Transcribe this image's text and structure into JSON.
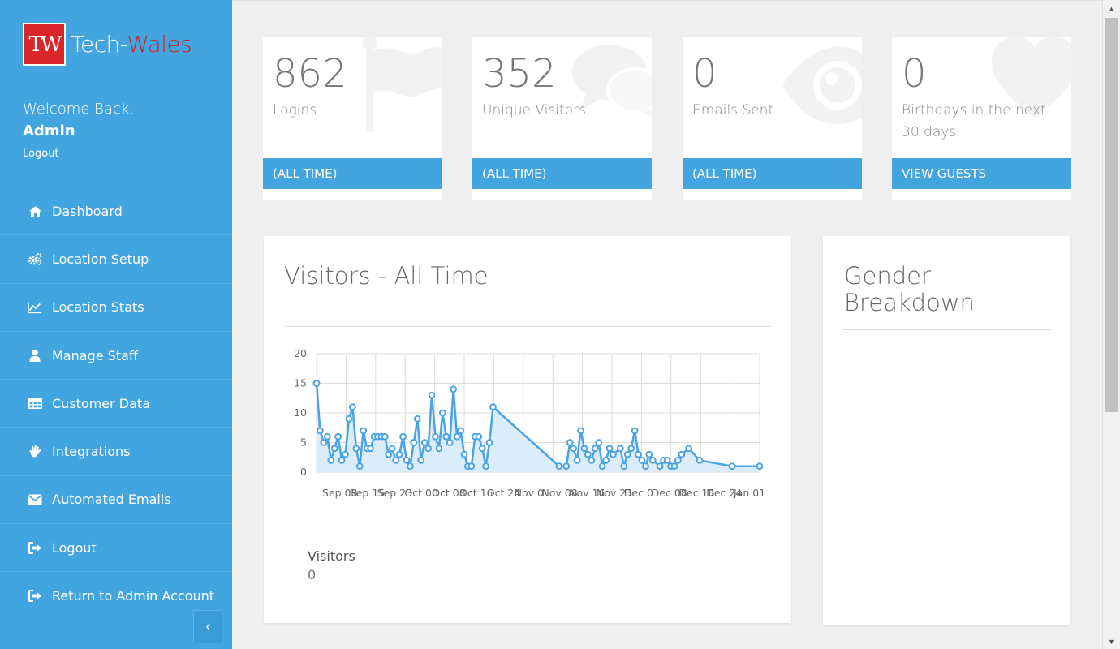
{
  "brand": {
    "mark": "TW",
    "name_part1": "Tech-",
    "name_part2": "Wales"
  },
  "user": {
    "welcome": "Welcome Back,",
    "name": "Admin",
    "logout": "Logout"
  },
  "nav": [
    {
      "label": "Dashboard",
      "icon": "home-icon"
    },
    {
      "label": "Location Setup",
      "icon": "cogs-icon"
    },
    {
      "label": "Location Stats",
      "icon": "line-chart-icon"
    },
    {
      "label": "Manage Staff",
      "icon": "user-icon"
    },
    {
      "label": "Customer Data",
      "icon": "table-icon"
    },
    {
      "label": "Integrations",
      "icon": "hand-icon"
    },
    {
      "label": "Automated Emails",
      "icon": "envelope-icon"
    },
    {
      "label": "Logout",
      "icon": "sign-out-icon"
    },
    {
      "label": "Return to Admin Account",
      "icon": "sign-out-icon"
    }
  ],
  "collapse_glyph": "‹",
  "stats": [
    {
      "value": "862",
      "label": "Logins",
      "footer": "(ALL TIME)",
      "icon": "flag-icon"
    },
    {
      "value": "352",
      "label": "Unique Visitors",
      "footer": "(ALL TIME)",
      "icon": "comments-icon"
    },
    {
      "value": "0",
      "label": "Emails Sent",
      "footer": "(ALL TIME)",
      "icon": "eye-icon"
    },
    {
      "value": "0",
      "label": "Birthdays in the next 30 days",
      "footer": "VIEW GUESTS",
      "icon": "heart-icon"
    }
  ],
  "visitors_panel": {
    "title": "Visitors - All Time",
    "legend_label": "Visitors",
    "legend_value": "0"
  },
  "gender_panel": {
    "title": "Gender Breakdown"
  },
  "chart_data": {
    "type": "area",
    "title": "Visitors - All Time",
    "ylim": [
      0,
      20
    ],
    "yticks": [
      0,
      5,
      10,
      15,
      20
    ],
    "xticks": [
      "Sep 08",
      "Sep 15",
      "Sep 23",
      "Oct 00",
      "Oct 08",
      "Oct 16",
      "Oct 24",
      "Nov 0",
      "Nov 08",
      "Nov 16",
      "Nov 23",
      "Dec 0",
      "Dec 08",
      "Dec 16",
      "Dec 24",
      "Jan 01"
    ],
    "grid": true,
    "colors": {
      "line": "#4aa3e4",
      "fill": "#d7eafa"
    },
    "series": [
      {
        "name": "Visitors",
        "points": [
          [
            0,
            15
          ],
          [
            0.3,
            7
          ],
          [
            0.6,
            5
          ],
          [
            0.9,
            6
          ],
          [
            1.2,
            2
          ],
          [
            1.5,
            4
          ],
          [
            1.8,
            6
          ],
          [
            2.1,
            2
          ],
          [
            2.4,
            3
          ],
          [
            2.7,
            9
          ],
          [
            3.0,
            11
          ],
          [
            3.3,
            4
          ],
          [
            3.6,
            1
          ],
          [
            3.9,
            7
          ],
          [
            4.2,
            4
          ],
          [
            4.5,
            4
          ],
          [
            4.8,
            6
          ],
          [
            5.1,
            6
          ],
          [
            5.4,
            6
          ],
          [
            5.7,
            6
          ],
          [
            6.0,
            3
          ],
          [
            6.3,
            4
          ],
          [
            6.6,
            2
          ],
          [
            6.9,
            3
          ],
          [
            7.2,
            6
          ],
          [
            7.5,
            2
          ],
          [
            7.8,
            1
          ],
          [
            8.1,
            5
          ],
          [
            8.4,
            9
          ],
          [
            8.7,
            2
          ],
          [
            9.0,
            5
          ],
          [
            9.3,
            4
          ],
          [
            9.6,
            13
          ],
          [
            9.9,
            6
          ],
          [
            10.2,
            4
          ],
          [
            10.5,
            10
          ],
          [
            10.8,
            6
          ],
          [
            11.1,
            5
          ],
          [
            11.4,
            14
          ],
          [
            11.7,
            6
          ],
          [
            12.0,
            7
          ],
          [
            12.3,
            3
          ],
          [
            12.6,
            1
          ],
          [
            12.9,
            1
          ],
          [
            13.2,
            6
          ],
          [
            13.5,
            6
          ],
          [
            13.8,
            4
          ],
          [
            14.1,
            1
          ],
          [
            14.4,
            5
          ],
          [
            14.7,
            11
          ],
          [
            20.2,
            1
          ],
          [
            20.8,
            1
          ],
          [
            21.1,
            5
          ],
          [
            21.4,
            4
          ],
          [
            21.7,
            2
          ],
          [
            22.0,
            7
          ],
          [
            22.3,
            4
          ],
          [
            22.6,
            3
          ],
          [
            22.9,
            2
          ],
          [
            23.2,
            4
          ],
          [
            23.5,
            5
          ],
          [
            23.8,
            1
          ],
          [
            24.1,
            2
          ],
          [
            24.4,
            4
          ],
          [
            24.7,
            3
          ],
          [
            25.3,
            4
          ],
          [
            25.6,
            1
          ],
          [
            25.9,
            3
          ],
          [
            26.2,
            4
          ],
          [
            26.5,
            7
          ],
          [
            26.8,
            3
          ],
          [
            27.1,
            2
          ],
          [
            27.4,
            1
          ],
          [
            27.7,
            3
          ],
          [
            28.0,
            2
          ],
          [
            28.6,
            1
          ],
          [
            28.9,
            2
          ],
          [
            29.2,
            2
          ],
          [
            29.5,
            1
          ],
          [
            29.8,
            1
          ],
          [
            30.1,
            2
          ],
          [
            30.4,
            3
          ],
          [
            31.0,
            4
          ],
          [
            31.9,
            2
          ],
          [
            34.6,
            1
          ],
          [
            36.9,
            1
          ]
        ]
      }
    ],
    "xrange": [
      0,
      36.9
    ]
  }
}
